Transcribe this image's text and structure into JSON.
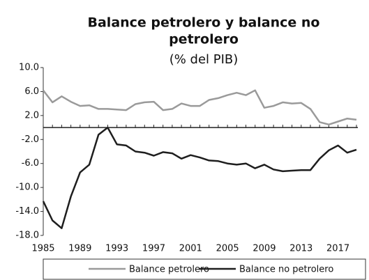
{
  "chart_data": {
    "type": "line",
    "title": "Balance petrolero y balance no petrolero",
    "subtitle": "(% del PIB)",
    "x": [
      1985,
      1986,
      1987,
      1988,
      1989,
      1990,
      1991,
      1992,
      1993,
      1994,
      1995,
      1996,
      1997,
      1998,
      1999,
      2000,
      2001,
      2002,
      2003,
      2004,
      2005,
      2006,
      2007,
      2008,
      2009,
      2010,
      2011,
      2012,
      2013,
      2014,
      2015,
      2016,
      2017,
      2018,
      2019
    ],
    "series": [
      {
        "name": "Balance petrolero",
        "color": "#9a9a9a",
        "values": [
          6.2,
          4.2,
          5.2,
          4.3,
          3.6,
          3.7,
          3.1,
          3.1,
          3.0,
          2.9,
          3.9,
          4.2,
          4.3,
          2.9,
          3.1,
          4.0,
          3.6,
          3.6,
          4.6,
          4.9,
          5.4,
          5.8,
          5.4,
          6.2,
          3.3,
          3.6,
          4.2,
          4.0,
          4.1,
          3.1,
          0.9,
          0.5,
          1.0,
          1.5,
          1.3
        ]
      },
      {
        "name": "Balance no petrolero",
        "color": "#1e1e1e",
        "values": [
          -12.3,
          -15.5,
          -16.8,
          -11.5,
          -7.5,
          -6.2,
          -1.2,
          0.0,
          -2.8,
          -3.0,
          -4.0,
          -4.2,
          -4.7,
          -4.1,
          -4.3,
          -5.2,
          -4.6,
          -5.0,
          -5.5,
          -5.6,
          -6.0,
          -6.2,
          -6.0,
          -6.8,
          -6.2,
          -7.0,
          -7.3,
          -7.2,
          -7.1,
          -7.1,
          -5.2,
          -3.8,
          -3.0,
          -4.2,
          -3.7
        ]
      }
    ],
    "xlim": [
      1985,
      2019
    ],
    "xticks": [
      1985,
      1989,
      1993,
      1997,
      2001,
      2005,
      2009,
      2013,
      2017
    ],
    "ylim": [
      -18,
      10
    ],
    "yticks": [
      {
        "value": 10,
        "label": "10.0"
      },
      {
        "value": 6,
        "label": "6.0"
      },
      {
        "value": 2,
        "label": "2.0"
      },
      {
        "value": -2,
        "label": "-2.0"
      },
      {
        "value": -6,
        "label": "-6.0"
      },
      {
        "value": -10,
        "label": "-10.0"
      },
      {
        "value": -14,
        "label": "-14.0"
      },
      {
        "value": -18,
        "label": "-18.0"
      }
    ],
    "grid": false,
    "legend": "bottom"
  }
}
